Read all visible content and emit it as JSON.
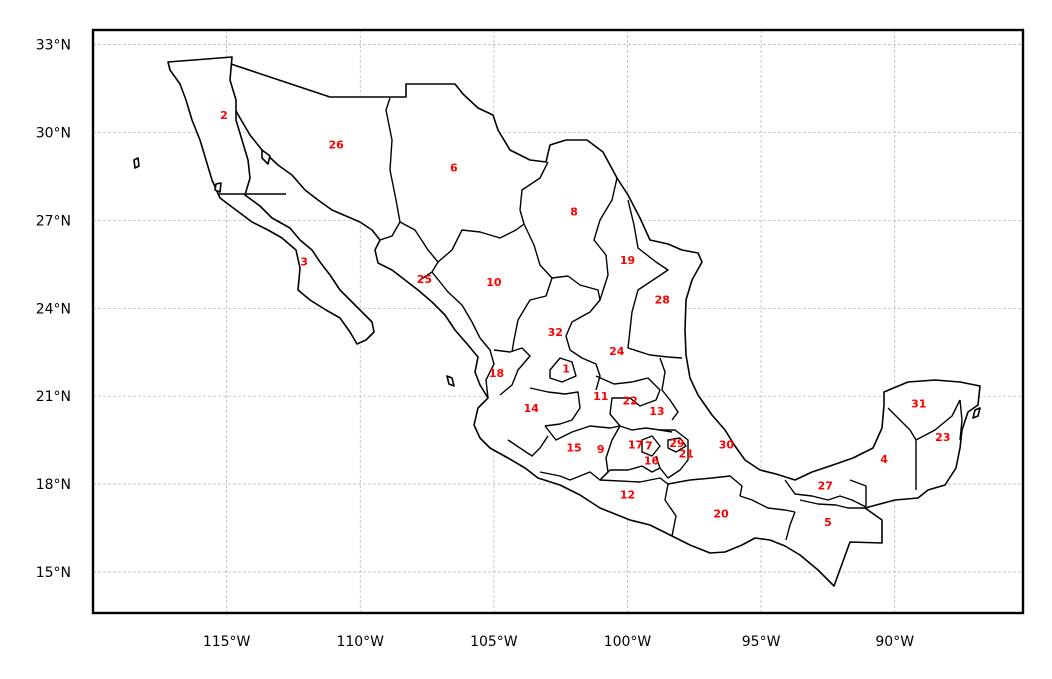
{
  "chart_data": {
    "type": "map",
    "title": "",
    "projection": "equirectangular",
    "xlim": [
      -120,
      -85.2
    ],
    "ylim": [
      13.6,
      33.5
    ],
    "grid": true,
    "x_ticks": [
      {
        "value": -115,
        "label": "115°W"
      },
      {
        "value": -110,
        "label": "110°W"
      },
      {
        "value": -105,
        "label": "105°W"
      },
      {
        "value": -100,
        "label": "100°W"
      },
      {
        "value": -95,
        "label": "95°W"
      },
      {
        "value": -90,
        "label": "90°W"
      }
    ],
    "y_ticks": [
      {
        "value": 15,
        "label": "15°N"
      },
      {
        "value": 18,
        "label": "18°N"
      },
      {
        "value": 21,
        "label": "21°N"
      },
      {
        "value": 24,
        "label": "24°N"
      },
      {
        "value": 27,
        "label": "27°N"
      },
      {
        "value": 30,
        "label": "30°N"
      },
      {
        "value": 33,
        "label": "33°N"
      }
    ],
    "label_color": "#ff0000",
    "outline_color": "#000000",
    "state_labels": [
      {
        "label": "1",
        "lon": -102.3,
        "lat": 21.95
      },
      {
        "label": "2",
        "lon": -115.1,
        "lat": 30.6
      },
      {
        "label": "3",
        "lon": -112.1,
        "lat": 25.6
      },
      {
        "label": "4",
        "lon": -90.4,
        "lat": 18.85
      },
      {
        "label": "5",
        "lon": -92.5,
        "lat": 16.7
      },
      {
        "label": "6",
        "lon": -106.5,
        "lat": 28.8
      },
      {
        "label": "7",
        "lon": -99.2,
        "lat": 19.32
      },
      {
        "label": "8",
        "lon": -102.0,
        "lat": 27.3
      },
      {
        "label": "9",
        "lon": -101.0,
        "lat": 19.2
      },
      {
        "label": "10",
        "lon": -105.0,
        "lat": 24.9
      },
      {
        "label": "11",
        "lon": -101.0,
        "lat": 21.0
      },
      {
        "label": "12",
        "lon": -100.0,
        "lat": 17.65
      },
      {
        "label": "13",
        "lon": -98.9,
        "lat": 20.5
      },
      {
        "label": "14",
        "lon": -103.6,
        "lat": 20.6
      },
      {
        "label": "15",
        "lon": -102.0,
        "lat": 19.25
      },
      {
        "label": "16",
        "lon": -99.1,
        "lat": 18.8
      },
      {
        "label": "17",
        "lon": -99.7,
        "lat": 19.35
      },
      {
        "label": "18",
        "lon": -104.9,
        "lat": 21.8
      },
      {
        "label": "19",
        "lon": -100.0,
        "lat": 25.65
      },
      {
        "label": "20",
        "lon": -96.5,
        "lat": 17.0
      },
      {
        "label": "21",
        "lon": -97.8,
        "lat": 19.05
      },
      {
        "label": "22",
        "lon": -99.9,
        "lat": 20.85
      },
      {
        "label": "23",
        "lon": -88.2,
        "lat": 19.6
      },
      {
        "label": "24",
        "lon": -100.4,
        "lat": 22.55
      },
      {
        "label": "25",
        "lon": -107.6,
        "lat": 25.0
      },
      {
        "label": "26",
        "lon": -110.9,
        "lat": 29.6
      },
      {
        "label": "27",
        "lon": -92.6,
        "lat": 17.95
      },
      {
        "label": "28",
        "lon": -98.7,
        "lat": 24.3
      },
      {
        "label": "29",
        "lon": -98.15,
        "lat": 19.4
      },
      {
        "label": "30",
        "lon": -96.3,
        "lat": 19.35
      },
      {
        "label": "31",
        "lon": -89.1,
        "lat": 20.75
      },
      {
        "label": "32",
        "lon": -102.7,
        "lat": 23.2
      }
    ]
  }
}
